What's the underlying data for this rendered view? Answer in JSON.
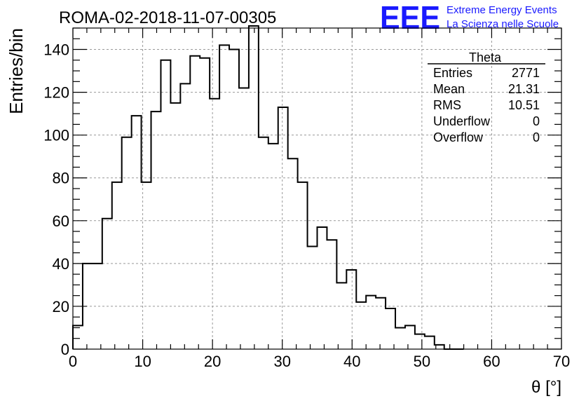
{
  "header": {
    "run_title": "ROMA-02-2018-11-07-00305",
    "logo_letters": "EEE",
    "logo_line1": "Extreme Energy Events",
    "logo_line2": "La Scienza nelle Scuole",
    "logo_color": "#1a1aff"
  },
  "stats_box": {
    "title": "Theta",
    "rows": [
      {
        "label": "Entries",
        "value": "2771"
      },
      {
        "label": "Mean",
        "value": "21.31"
      },
      {
        "label": "RMS",
        "value": "10.51"
      },
      {
        "label": "Underflow",
        "value": "0"
      },
      {
        "label": "Overflow",
        "value": "0"
      }
    ]
  },
  "chart_data": {
    "type": "bar",
    "title": "ROMA-02-2018-11-07-00305",
    "xlabel": "θ [°]",
    "ylabel": "Entries/bin",
    "xlim": [
      0,
      70
    ],
    "ylim": [
      0,
      150
    ],
    "x_ticks": [
      0,
      10,
      20,
      30,
      40,
      50,
      60,
      70
    ],
    "y_ticks": [
      0,
      20,
      40,
      60,
      80,
      100,
      120,
      140
    ],
    "grid": true,
    "bin_edges": [
      0,
      1.4,
      2.8,
      4.2,
      5.6,
      7.0,
      8.4,
      9.8,
      11.2,
      12.6,
      14.0,
      15.4,
      16.8,
      18.2,
      19.6,
      21.0,
      22.4,
      23.8,
      25.2,
      26.6,
      28.0,
      29.4,
      30.8,
      32.2,
      33.6,
      35.0,
      36.4,
      37.8,
      39.2,
      40.6,
      42.0,
      43.4,
      44.8,
      46.2,
      47.6,
      49.0,
      50.4,
      51.8,
      53.2,
      54.6,
      56.0
    ],
    "values": [
      11,
      40,
      40,
      61,
      78,
      99,
      109,
      78,
      111,
      135,
      115,
      124,
      137,
      136,
      117,
      142,
      140,
      122,
      151,
      99,
      96,
      113,
      89,
      78,
      48,
      57,
      51,
      31,
      37,
      22,
      25,
      24,
      19,
      10,
      11,
      7,
      6,
      2,
      0,
      0
    ],
    "line_color": "#000000"
  }
}
